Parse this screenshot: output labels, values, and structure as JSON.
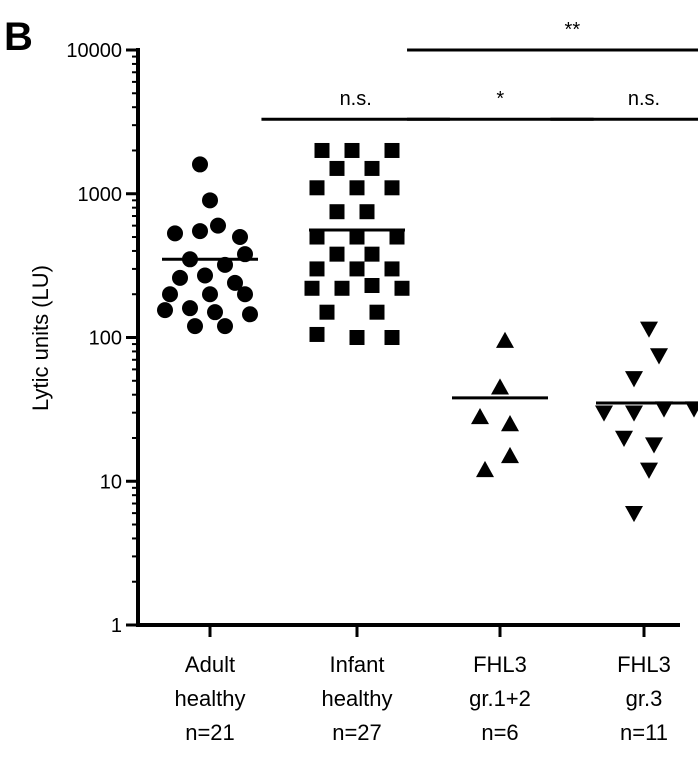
{
  "panel_label": "B",
  "chart_data": {
    "type": "scatter",
    "title": "",
    "xlabel": "",
    "ylabel": "Lytic units (LU)",
    "yscale": "log",
    "ylim": [
      1,
      10000
    ],
    "yticks": [
      {
        "value": 1,
        "label": "1"
      },
      {
        "value": 10,
        "label": "10"
      },
      {
        "value": 100,
        "label": "100"
      },
      {
        "value": 1000,
        "label": "1000"
      },
      {
        "value": 10000,
        "label": "10000"
      }
    ],
    "categories": [
      {
        "line1": "Adult",
        "line2": "healthy",
        "n": "n=21"
      },
      {
        "line1": "Infant",
        "line2": "healthy",
        "n": "n=27"
      },
      {
        "line1": "FHL3",
        "line2": "gr.1+2",
        "n": "n=6"
      },
      {
        "line1": "FHL3",
        "line2": "gr.3",
        "n": "n=11"
      }
    ],
    "series": [
      {
        "category": 0,
        "marker": "circle",
        "mean": 350,
        "points": [
          {
            "o": -0.1,
            "y": 1600
          },
          {
            "o": 0.0,
            "y": 900
          },
          {
            "o": -0.35,
            "y": 530
          },
          {
            "o": -0.1,
            "y": 550
          },
          {
            "o": 0.08,
            "y": 600
          },
          {
            "o": 0.3,
            "y": 500
          },
          {
            "o": -0.2,
            "y": 350
          },
          {
            "o": 0.15,
            "y": 320
          },
          {
            "o": 0.35,
            "y": 380
          },
          {
            "o": -0.3,
            "y": 260
          },
          {
            "o": -0.05,
            "y": 270
          },
          {
            "o": 0.25,
            "y": 240
          },
          {
            "o": -0.4,
            "y": 200
          },
          {
            "o": 0.0,
            "y": 200
          },
          {
            "o": 0.35,
            "y": 200
          },
          {
            "o": -0.45,
            "y": 155
          },
          {
            "o": -0.2,
            "y": 160
          },
          {
            "o": 0.05,
            "y": 150
          },
          {
            "o": 0.4,
            "y": 145
          },
          {
            "o": -0.15,
            "y": 120
          },
          {
            "o": 0.15,
            "y": 120
          }
        ]
      },
      {
        "category": 1,
        "marker": "square",
        "mean": 560,
        "points": [
          {
            "o": -0.35,
            "y": 2000
          },
          {
            "o": -0.05,
            "y": 2000
          },
          {
            "o": 0.35,
            "y": 2000
          },
          {
            "o": -0.2,
            "y": 1500
          },
          {
            "o": 0.15,
            "y": 1500
          },
          {
            "o": -0.4,
            "y": 1100
          },
          {
            "o": 0.0,
            "y": 1100
          },
          {
            "o": 0.35,
            "y": 1100
          },
          {
            "o": -0.2,
            "y": 750
          },
          {
            "o": 0.1,
            "y": 750
          },
          {
            "o": -0.4,
            "y": 500
          },
          {
            "o": 0.0,
            "y": 500
          },
          {
            "o": 0.4,
            "y": 500
          },
          {
            "o": -0.2,
            "y": 380
          },
          {
            "o": 0.15,
            "y": 380
          },
          {
            "o": -0.4,
            "y": 300
          },
          {
            "o": 0.0,
            "y": 300
          },
          {
            "o": 0.35,
            "y": 300
          },
          {
            "o": -0.45,
            "y": 220
          },
          {
            "o": -0.15,
            "y": 220
          },
          {
            "o": 0.15,
            "y": 230
          },
          {
            "o": 0.45,
            "y": 220
          },
          {
            "o": -0.3,
            "y": 150
          },
          {
            "o": 0.2,
            "y": 150
          },
          {
            "o": -0.4,
            "y": 105
          },
          {
            "o": 0.0,
            "y": 100
          },
          {
            "o": 0.35,
            "y": 100
          }
        ]
      },
      {
        "category": 2,
        "marker": "triangle-up",
        "mean": 38,
        "points": [
          {
            "o": 0.05,
            "y": 95
          },
          {
            "o": 0.0,
            "y": 45
          },
          {
            "o": -0.2,
            "y": 28
          },
          {
            "o": 0.1,
            "y": 25
          },
          {
            "o": 0.1,
            "y": 15
          },
          {
            "o": -0.15,
            "y": 12
          }
        ]
      },
      {
        "category": 3,
        "marker": "triangle-down",
        "mean": 35,
        "points": [
          {
            "o": 0.05,
            "y": 115
          },
          {
            "o": 0.15,
            "y": 75
          },
          {
            "o": -0.1,
            "y": 52
          },
          {
            "o": -0.4,
            "y": 30
          },
          {
            "o": -0.1,
            "y": 30
          },
          {
            "o": 0.2,
            "y": 32
          },
          {
            "o": 0.5,
            "y": 32
          },
          {
            "o": -0.2,
            "y": 20
          },
          {
            "o": 0.1,
            "y": 18
          },
          {
            "o": 0.05,
            "y": 12
          },
          {
            "o": -0.1,
            "y": 6
          }
        ]
      }
    ],
    "significance": [
      {
        "from": 0.35,
        "to": 1.65,
        "label": "n.s.",
        "y": 3300
      },
      {
        "from": 1.35,
        "to": 2.65,
        "label": "*",
        "y": 3300
      },
      {
        "from": 2.35,
        "to": 3.65,
        "label": "n.s.",
        "y": 3300
      },
      {
        "from": 1.35,
        "to": 3.65,
        "label": "**",
        "y": 10000
      }
    ],
    "grid": false,
    "legend": "none"
  }
}
